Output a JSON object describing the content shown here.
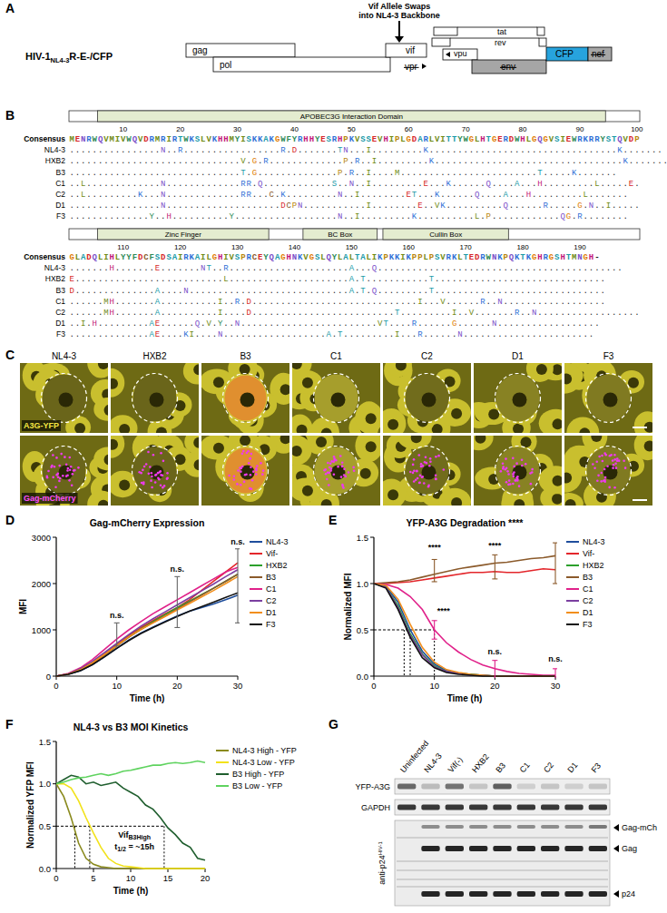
{
  "panel_letters": [
    "A",
    "B",
    "C",
    "D",
    "E",
    "F",
    "G"
  ],
  "genome": {
    "title": "HIV-1",
    "title_sub": "NL4-3",
    "title_suffix": "R-E-/CFP",
    "arrow_label": [
      "Vif Allele Swaps",
      "into NL4-3 Backbone"
    ],
    "genes": [
      {
        "name": "gag",
        "deleted": false
      },
      {
        "name": "pol",
        "deleted": false
      },
      {
        "name": "vif",
        "deleted": false
      },
      {
        "name": "vpr",
        "deleted": true
      },
      {
        "name": "tat",
        "deleted": false
      },
      {
        "name": "rev",
        "deleted": false
      },
      {
        "name": "vpu",
        "deleted": false
      },
      {
        "name": "env",
        "deleted": true
      },
      {
        "name": "CFP",
        "deleted": false
      },
      {
        "name": "nef",
        "deleted": true
      }
    ]
  },
  "alignment": {
    "labels": [
      "Consensus",
      "NL4-3",
      "HXB2",
      "B3",
      "C1",
      "C2",
      "D1",
      "F3"
    ],
    "blocks": [
      {
        "start": 1,
        "ticks": [
          10,
          20,
          30,
          40,
          50,
          60,
          70,
          80,
          90,
          100
        ],
        "domains": [
          {
            "label": "APOBEC3G Interaction Domain",
            "start": 6,
            "end": 94
          }
        ],
        "sequences": [
          "MENRWQVMIVWQVDRMRIRTWKSLVKHHMYISKKAKGWFYRHHYESRHPKVSSEVHIPLGDARLVITTYWGLHTGERDWHLGQGVSIEWRKRRYSTQVDP",
          "................N..R.................R.D.......TN...I.........K.................................K.......",
          "..............................V.G.R.............P.R..I.........K.................................K.......",
          "..............................T.G..............P.R..I....M........................T.....K.......",
          "..L.............N.............RR.Q............S..N..I.........E...K......Q....A...H.........L.....E.",
          "..L.........K...N.............RR...C.K.........N..I........ET...K......Q....A...H.........L.......",
          "................N....................DCPN...........I........E..VK..........Q......R.....G.N..I.....",
          "..............Y..H..........Y..................N..I.........K..........L.P............QG.R........"
        ]
      },
      {
        "start": 101,
        "ticks": [
          110,
          120,
          130,
          140,
          150,
          160,
          170,
          180,
          190
        ],
        "domains": [
          {
            "label": "Zinc Finger",
            "start": 106,
            "end": 135
          },
          {
            "label": "BC Box",
            "start": 142,
            "end": 154
          },
          {
            "label": "Cullin Box",
            "start": 156,
            "end": 177
          }
        ],
        "sequences": [
          "GLADQLIHLYYFDCFSDSAIRKAILGHIVSPRCEYQAGHNKVGSLQYLALTALIKPKKIKPPLPSVRKLTEDRWNKPQKTKGHRGSHTMNGH-",
          ".......H.......E.......NT..R.....................A...Q...........................................",
          "E..........................L.....................A.T...........T..............................",
          "D..............A....N............................A.T.Q.........T..............................",
          "......MH.......A..........I..R.D.............................I...V......R..N..................",
          "......MH.......A..........I....D.........................T.........I..V.......R..N..................",
          "..I.H.........AE......Q.V.Y..N........................VT....R......G......N..................",
          "..............AE....KI....N..................A.T.........I...R......N......................."
        ]
      }
    ]
  },
  "microscopy": {
    "columns": [
      "NL4-3",
      "HXB2",
      "B3",
      "C1",
      "C2",
      "D1",
      "F3"
    ],
    "channels": [
      "A3G-YFP",
      "Gag-mCherry"
    ]
  },
  "chart_data": [
    {
      "type": "line",
      "title": "Gag-mCherry Expression",
      "x_label": "Time (h)",
      "y_label": "MFI",
      "x": [
        0,
        2,
        4,
        6,
        8,
        10,
        12,
        14,
        16,
        18,
        20,
        22,
        24,
        26,
        28,
        30
      ],
      "xlim": [
        0,
        30
      ],
      "xticks": [
        0,
        10,
        20,
        30
      ],
      "ylim": [
        0,
        3000
      ],
      "yticks": [
        0,
        1000,
        2000,
        3000
      ],
      "grid": false,
      "legend": "right",
      "series": [
        {
          "name": "NL4-3",
          "color": "#1f4e9c",
          "values": [
            0,
            40,
            120,
            250,
            420,
            600,
            780,
            930,
            1060,
            1180,
            1300,
            1400,
            1480,
            1560,
            1650,
            1750
          ]
        },
        {
          "name": "Vif-",
          "color": "#e3262b",
          "values": [
            0,
            50,
            150,
            300,
            480,
            680,
            880,
            1050,
            1200,
            1350,
            1480,
            1650,
            1850,
            2050,
            2250,
            2450
          ]
        },
        {
          "name": "HXB2",
          "color": "#2ca02c",
          "values": [
            0,
            45,
            140,
            290,
            470,
            660,
            850,
            1020,
            1180,
            1330,
            1480,
            1620,
            1760,
            1900,
            2050,
            2200
          ]
        },
        {
          "name": "B3",
          "color": "#8b5a2b",
          "values": [
            0,
            45,
            130,
            270,
            450,
            650,
            840,
            1010,
            1160,
            1300,
            1450,
            1600,
            1750,
            1900,
            2050,
            2200
          ]
        },
        {
          "name": "C1",
          "color": "#e0218a",
          "values": [
            0,
            60,
            180,
            360,
            580,
            800,
            1000,
            1180,
            1350,
            1500,
            1650,
            1800,
            1950,
            2100,
            2250,
            2350
          ]
        },
        {
          "name": "C2",
          "color": "#7b3fa0",
          "values": [
            0,
            50,
            160,
            320,
            510,
            710,
            900,
            1080,
            1240,
            1390,
            1540,
            1690,
            1840,
            1990,
            2150,
            2300
          ]
        },
        {
          "name": "D1",
          "color": "#f28e1c",
          "values": [
            0,
            45,
            140,
            290,
            470,
            660,
            850,
            1010,
            1150,
            1290,
            1430,
            1570,
            1710,
            1850,
            2000,
            2150
          ]
        },
        {
          "name": "F3",
          "color": "#111111",
          "values": [
            0,
            40,
            120,
            250,
            420,
            600,
            770,
            920,
            1050,
            1170,
            1290,
            1400,
            1500,
            1600,
            1700,
            1800
          ]
        }
      ],
      "error_bars": [
        {
          "x": 10,
          "value": 900,
          "error": 250,
          "color": "#666666"
        },
        {
          "x": 20,
          "value": 1600,
          "error": 550,
          "color": "#666666"
        },
        {
          "x": 30,
          "value": 1950,
          "error": 800,
          "color": "#666666"
        }
      ],
      "annotations": [
        {
          "text": "n.s.",
          "x": 10,
          "y": 1250
        },
        {
          "text": "n.s.",
          "x": 20,
          "y": 2250
        },
        {
          "text": "n.s.",
          "x": 30,
          "y": 2850
        }
      ]
    },
    {
      "type": "line",
      "title": "YFP-A3G Degradation ****",
      "x_label": "Time (h)",
      "y_label": "Normalized MFI",
      "x": [
        0,
        2,
        4,
        6,
        8,
        10,
        12,
        14,
        16,
        18,
        20,
        22,
        24,
        26,
        28,
        30
      ],
      "xlim": [
        0,
        30
      ],
      "xticks": [
        0,
        10,
        20,
        30
      ],
      "ylim": [
        0,
        1.5
      ],
      "yticks": [
        {
          "value": 0,
          "label": "0.0"
        },
        0.5,
        {
          "value": 1,
          "label": "1.0"
        },
        1.5
      ],
      "grid": false,
      "legend": "right",
      "series": [
        {
          "name": "NL4-3",
          "color": "#1f4e9c",
          "values": [
            1,
            0.97,
            0.8,
            0.5,
            0.27,
            0.13,
            0.06,
            0.03,
            0.02,
            0.01,
            0,
            0,
            0,
            0,
            0,
            0
          ]
        },
        {
          "name": "Vif-",
          "color": "#e3262b",
          "values": [
            1,
            1,
            1.01,
            1.02,
            1.04,
            1.06,
            1.08,
            1.1,
            1.12,
            1.12,
            1.13,
            1.12,
            1.12,
            1.14,
            1.16,
            1.15
          ]
        },
        {
          "name": "HXB2",
          "color": "#2ca02c",
          "values": [
            1,
            0.96,
            0.76,
            0.46,
            0.24,
            0.11,
            0.05,
            0.03,
            0.02,
            0.01,
            0,
            0,
            0,
            0,
            0,
            0
          ]
        },
        {
          "name": "B3",
          "color": "#8b5a2b",
          "values": [
            1,
            1.01,
            1.02,
            1.04,
            1.07,
            1.1,
            1.13,
            1.16,
            1.18,
            1.2,
            1.22,
            1.23,
            1.25,
            1.27,
            1.28,
            1.3
          ]
        },
        {
          "name": "C1",
          "color": "#e0218a",
          "values": [
            1,
            0.99,
            0.95,
            0.86,
            0.72,
            0.5,
            0.36,
            0.26,
            0.18,
            0.12,
            0.08,
            0.05,
            0.03,
            0.02,
            0.01,
            0.01
          ]
        },
        {
          "name": "C2",
          "color": "#7b3fa0",
          "values": [
            1,
            0.96,
            0.74,
            0.44,
            0.23,
            0.1,
            0.05,
            0.03,
            0.01,
            0.01,
            0,
            0,
            0,
            0,
            0,
            0
          ]
        },
        {
          "name": "D1",
          "color": "#f28e1c",
          "values": [
            1,
            0.98,
            0.83,
            0.56,
            0.31,
            0.15,
            0.07,
            0.04,
            0.02,
            0.01,
            0,
            0,
            0,
            0,
            0,
            0
          ]
        },
        {
          "name": "F3",
          "color": "#111111",
          "values": [
            1,
            0.95,
            0.72,
            0.42,
            0.2,
            0.09,
            0.04,
            0.02,
            0.01,
            0,
            0,
            0,
            0,
            0,
            0,
            0
          ]
        }
      ],
      "error_bars": [
        {
          "x": 10,
          "value": 1.14,
          "error": 0.12,
          "color": "#8b5a2b"
        },
        {
          "x": 20,
          "value": 1.18,
          "error": 0.13,
          "color": "#8b5a2b"
        },
        {
          "x": 30,
          "value": 1.22,
          "error": 0.22,
          "color": "#8b5a2b"
        },
        {
          "x": 10,
          "value": 0.5,
          "error": 0.1,
          "color": "#e0218a"
        },
        {
          "x": 20,
          "value": 0.05,
          "error": 0.12,
          "color": "#e0218a"
        },
        {
          "x": 30,
          "value": 0.02,
          "error": 0.06,
          "color": "#e0218a"
        }
      ],
      "reference_lines": {
        "y": 0.5,
        "x": [
          5,
          6,
          10
        ]
      },
      "annotations": [
        {
          "text": "****",
          "x": 10,
          "y": 1.36
        },
        {
          "text": "****",
          "x": 20,
          "y": 1.38
        },
        {
          "text": "****",
          "x": 11.5,
          "y": 0.68
        },
        {
          "text": "n.s.",
          "x": 20,
          "y": 0.24
        },
        {
          "text": "n.s.",
          "x": 30,
          "y": 0.16
        }
      ]
    },
    {
      "type": "line",
      "title": "NL4-3 vs B3 MOI Kinetics",
      "x_label": "Time (h)",
      "y_label": "Normalized YFP MFI",
      "x": [
        0,
        1,
        2,
        3,
        4,
        5,
        6,
        7,
        8,
        9,
        10,
        11,
        12,
        13,
        14,
        15,
        16,
        17,
        18,
        19,
        20
      ],
      "xlim": [
        0,
        20
      ],
      "xticks": [
        0,
        5,
        10,
        15,
        20
      ],
      "ylim": [
        0,
        1.5
      ],
      "yticks": [
        {
          "value": 0,
          "label": "0.0"
        },
        0.5,
        {
          "value": 1,
          "label": "1.0"
        },
        1.5
      ],
      "grid": false,
      "legend": "right",
      "series": [
        {
          "name": "NL4-3 High - YFP",
          "color": "#8a8a1e",
          "values": [
            1,
            0.85,
            0.6,
            0.3,
            0.12,
            0.05,
            0.02,
            0.01,
            0,
            0,
            0,
            0,
            0,
            0,
            0,
            0,
            0,
            0,
            0,
            0,
            0
          ]
        },
        {
          "name": "NL4-3 Low - YFP",
          "color": "#f2e21a",
          "values": [
            1,
            1,
            0.95,
            0.8,
            0.6,
            0.42,
            0.25,
            0.12,
            0.06,
            0.03,
            0.02,
            0.01,
            0,
            0,
            0,
            0,
            0,
            0,
            0,
            0,
            0
          ]
        },
        {
          "name": "B3 High - YFP",
          "color": "#1f5e2e",
          "values": [
            1,
            1.05,
            1.1,
            1.08,
            1.0,
            1.02,
            0.98,
            1.0,
            1.02,
            0.95,
            0.9,
            0.85,
            0.75,
            0.7,
            0.6,
            0.48,
            0.4,
            0.3,
            0.25,
            0.12,
            0.1
          ]
        },
        {
          "name": "B3 Low - YFP",
          "color": "#5fd35f",
          "values": [
            1,
            1.02,
            1.05,
            1.07,
            1.08,
            1.1,
            1.12,
            1.1,
            1.12,
            1.15,
            1.16,
            1.18,
            1.2,
            1.22,
            1.22,
            1.24,
            1.25,
            1.24,
            1.25,
            1.27,
            1.25
          ]
        }
      ],
      "reference_lines": {
        "y": 0.5,
        "x": [
          2.5,
          4.5,
          14.5
        ]
      },
      "annotations": [
        {
          "text": "Vif",
          "sub": "B3High",
          "x": 10.5,
          "y": 0.36
        },
        {
          "text": "t",
          "sub": "1/2",
          "suffix": " = ~15h",
          "x": 10.5,
          "y": 0.22
        }
      ]
    }
  ],
  "western_blot": {
    "lanes": [
      "Uninfected",
      "NL4-3",
      "Vif(-)",
      "HXB2",
      "B3",
      "C1",
      "C2",
      "D1",
      "F3"
    ],
    "rows": [
      {
        "label": "YFP-A3G",
        "intensity": [
          0.65,
          0.25,
          0.6,
          0.2,
          0.7,
          0.15,
          0.2,
          0.15,
          0.2
        ]
      },
      {
        "label": "GAPDH",
        "intensity": [
          0.9,
          0.9,
          0.9,
          0.9,
          0.9,
          0.9,
          0.9,
          0.9,
          0.9
        ]
      }
    ],
    "probe": "anti-p24",
    "probe_sup": "HIV-1",
    "bands": [
      {
        "label": "Gag-mCh",
        "intensity": [
          0,
          0.45,
          0.45,
          0.45,
          0.45,
          0.45,
          0.45,
          0.45,
          0.55
        ]
      },
      {
        "label": "Gag",
        "intensity": [
          0,
          0.95,
          0.95,
          0.95,
          0.95,
          0.95,
          0.95,
          0.95,
          0.95
        ]
      },
      {
        "label": "p24",
        "intensity": [
          0,
          0.95,
          0.95,
          0.95,
          0.95,
          0.95,
          0.95,
          0.95,
          0.95
        ]
      }
    ]
  }
}
